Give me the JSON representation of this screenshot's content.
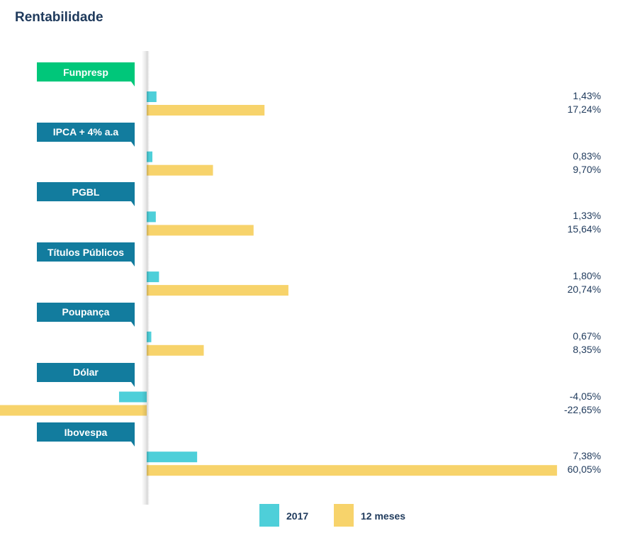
{
  "title": "Rentabilidade",
  "colors": {
    "series_2017": "#4ecfd9",
    "series_12m": "#f7d36b",
    "tag_default": "#127c9e",
    "tag_highlight": "#00c77a",
    "text": "#1f3a5c"
  },
  "chart_data": {
    "type": "bar",
    "orientation": "horizontal",
    "title": "Rentabilidade",
    "xlabel": "",
    "ylabel": "",
    "grid": false,
    "legend_position": "bottom",
    "categories": [
      "Funpresp",
      "IPCA + 4% a.a",
      "PGBL",
      "Títulos Públicos",
      "Poupança",
      "Dólar",
      "Ibovespa"
    ],
    "series": [
      {
        "name": "2017",
        "values": [
          1.43,
          0.83,
          1.33,
          1.8,
          0.67,
          -4.05,
          7.38
        ],
        "labels": [
          "1,43%",
          "0,83%",
          "1,33%",
          "1,80%",
          "0,67%",
          "-4,05%",
          "7,38%"
        ]
      },
      {
        "name": "12 meses",
        "values": [
          17.24,
          9.7,
          15.64,
          20.74,
          8.35,
          -22.65,
          60.05
        ],
        "labels": [
          "17,24%",
          "9,70%",
          "15,64%",
          "20,74%",
          "8,35%",
          "-22,65%",
          "60,05%"
        ]
      }
    ]
  }
}
